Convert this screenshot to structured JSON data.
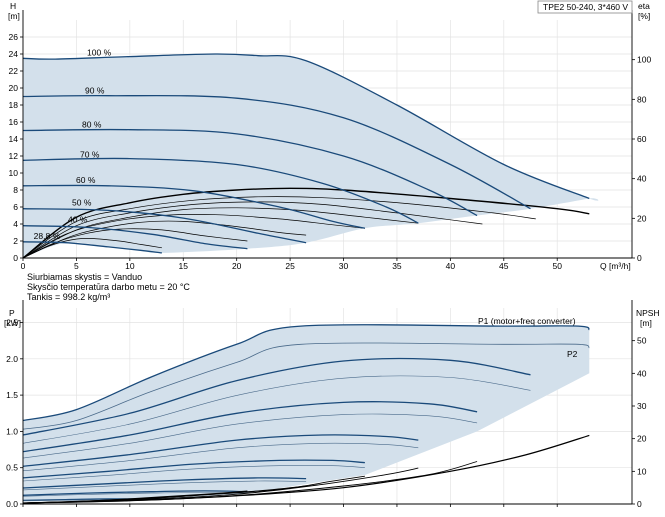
{
  "legend_box": "TPE2 50-240, 3*460 V",
  "notes": {
    "liquid": "Siurbiamas skystis = Vanduo",
    "temperature": "Skysčio temperatūra darbo metu = 20 °C",
    "density": "Tankis = 998.2 kg/m³"
  },
  "colors": {
    "envelope_fill": "#d3e0eb",
    "curve_dark": "#1a4a7a",
    "curve_light": "#4a6a8a",
    "efficiency": "#000000",
    "npsh": "#000000"
  },
  "chart_data": [
    {
      "type": "line",
      "name": "QH",
      "y_unit_label": "H",
      "y_unit": "[m]",
      "y2_unit_label": "eta",
      "y2_unit": "[%]",
      "x_unit_label": "Q [m³/h]",
      "xlim": [
        0,
        57
      ],
      "ylim": [
        0,
        28
      ],
      "x_ticks": [
        "0",
        "5",
        "10",
        "15",
        "20",
        "25",
        "30",
        "35",
        "40",
        "45",
        "50"
      ],
      "y_ticks": [
        "0",
        "2",
        "4",
        "6",
        "8",
        "10",
        "12",
        "14",
        "16",
        "18",
        "20",
        "22",
        "24",
        "26"
      ],
      "y2_ticks": [
        "0",
        "20",
        "40",
        "60",
        "80",
        "100"
      ],
      "speed_curves": [
        {
          "label": "100 %",
          "points": [
            [
              0,
              23.5
            ],
            [
              3,
              23.4
            ],
            [
              10,
              23.7
            ],
            [
              18,
              24.0
            ],
            [
              22,
              23.8
            ],
            [
              26.5,
              23.2
            ],
            [
              35,
              18.0
            ],
            [
              45,
              11.0
            ],
            [
              53,
              7.0
            ]
          ]
        },
        {
          "label": "90 %",
          "points": [
            [
              0,
              19.0
            ],
            [
              8,
              19.1
            ],
            [
              20,
              18.8
            ],
            [
              30,
              16.5
            ],
            [
              40,
              11.0
            ],
            [
              47.5,
              5.8
            ]
          ]
        },
        {
          "label": "80 %",
          "points": [
            [
              0,
              15.0
            ],
            [
              10,
              15.1
            ],
            [
              20,
              14.6
            ],
            [
              30,
              12.0
            ],
            [
              38,
              8.0
            ],
            [
              42.5,
              5.0
            ]
          ]
        },
        {
          "label": "70 %",
          "points": [
            [
              0,
              11.5
            ],
            [
              10,
              11.7
            ],
            [
              20,
              11.0
            ],
            [
              28,
              8.8
            ],
            [
              34,
              6.0
            ],
            [
              37,
              4.1
            ]
          ]
        },
        {
          "label": "60 %",
          "points": [
            [
              0,
              8.5
            ],
            [
              8,
              8.5
            ],
            [
              16,
              7.9
            ],
            [
              24,
              6.0
            ],
            [
              29,
              4.3
            ],
            [
              32,
              3.5
            ]
          ]
        },
        {
          "label": "50 %",
          "points": [
            [
              0,
              5.8
            ],
            [
              8,
              5.6
            ],
            [
              15,
              4.7
            ],
            [
              22,
              2.9
            ],
            [
              26.5,
              1.8
            ]
          ]
        },
        {
          "label": "40 %",
          "points": [
            [
              0,
              3.8
            ],
            [
              6,
              3.6
            ],
            [
              12,
              2.8
            ],
            [
              17,
              1.7
            ],
            [
              21,
              1.1
            ]
          ]
        },
        {
          "label": "28.8 %",
          "points": [
            [
              0,
              1.9
            ],
            [
              4,
              1.8
            ],
            [
              8,
              1.3
            ],
            [
              11,
              0.9
            ],
            [
              13,
              0.6
            ]
          ]
        }
      ],
      "efficiency_curves": [
        {
          "points": [
            [
              0,
              0
            ],
            [
              5,
              4.8
            ],
            [
              10,
              6.5
            ],
            [
              15,
              7.5
            ],
            [
              20,
              8.0
            ],
            [
              25,
              8.2
            ],
            [
              30,
              8.0
            ],
            [
              40,
              7.0
            ],
            [
              50,
              5.8
            ],
            [
              53,
              5.2
            ]
          ]
        },
        {
          "points": [
            [
              0,
              0
            ],
            [
              5,
              4.3
            ],
            [
              10,
              5.8
            ],
            [
              16,
              6.8
            ],
            [
              22,
              7.2
            ],
            [
              28,
              7.1
            ],
            [
              36,
              6.4
            ],
            [
              44,
              5.3
            ],
            [
              48,
              4.6
            ]
          ]
        },
        {
          "points": [
            [
              0,
              0
            ],
            [
              5,
              3.8
            ],
            [
              10,
              5.3
            ],
            [
              16,
              6.3
            ],
            [
              22,
              6.6
            ],
            [
              28,
              6.3
            ],
            [
              35,
              5.3
            ],
            [
              40,
              4.5
            ],
            [
              43,
              4.0
            ]
          ]
        },
        {
          "points": [
            [
              0,
              0
            ],
            [
              5,
              3.3
            ],
            [
              10,
              4.8
            ],
            [
              15,
              5.7
            ],
            [
              20,
              5.9
            ],
            [
              26,
              5.6
            ],
            [
              32,
              4.8
            ],
            [
              37,
              4.1
            ]
          ]
        },
        {
          "points": [
            [
              0,
              0
            ],
            [
              4,
              2.8
            ],
            [
              8,
              4.2
            ],
            [
              13,
              5.0
            ],
            [
              18,
              5.1
            ],
            [
              24,
              4.6
            ],
            [
              29,
              3.9
            ],
            [
              32,
              3.5
            ]
          ]
        },
        {
          "points": [
            [
              0,
              0
            ],
            [
              4,
              2.3
            ],
            [
              7,
              3.4
            ],
            [
              11,
              4.2
            ],
            [
              15,
              4.3
            ],
            [
              20,
              3.7
            ],
            [
              24,
              3.0
            ],
            [
              26.5,
              2.7
            ]
          ]
        },
        {
          "points": [
            [
              0,
              0
            ],
            [
              3,
              1.8
            ],
            [
              6,
              2.9
            ],
            [
              9,
              3.4
            ],
            [
              13,
              3.3
            ],
            [
              17,
              2.6
            ],
            [
              21,
              2.0
            ]
          ]
        },
        {
          "points": [
            [
              0,
              0
            ],
            [
              2,
              1.2
            ],
            [
              4,
              2.0
            ],
            [
              6,
              2.3
            ],
            [
              9,
              2.0
            ],
            [
              11,
              1.6
            ],
            [
              13,
              1.2
            ]
          ]
        }
      ]
    },
    {
      "type": "line",
      "name": "Power",
      "y_unit_label": "P",
      "y_unit": "[kW]",
      "y2_unit_label": "NPSH",
      "y2_unit": "[m]",
      "xlim": [
        0,
        57
      ],
      "ylim": [
        0,
        2.7
      ],
      "y_ticks": [
        "0.0",
        "0.5",
        "1.0",
        "1.5",
        "2.0",
        "2.5"
      ],
      "y2_ticks": [
        "0",
        "10",
        "20",
        "30",
        "40",
        "50"
      ],
      "series_labels": [
        "P1 (motor+freq converter)",
        "P2"
      ],
      "p1_envelope": [
        [
          0,
          1.15
        ],
        [
          5,
          1.3
        ],
        [
          12,
          1.75
        ],
        [
          20,
          2.2
        ],
        [
          26,
          2.45
        ],
        [
          45,
          2.45
        ],
        [
          52,
          2.45
        ],
        [
          53,
          2.4
        ]
      ],
      "p2_envelope": [
        [
          0,
          1.03
        ],
        [
          5,
          1.15
        ],
        [
          12,
          1.55
        ],
        [
          20,
          1.95
        ],
        [
          26,
          2.2
        ],
        [
          45,
          2.2
        ],
        [
          52,
          2.2
        ],
        [
          53,
          2.15
        ]
      ],
      "power_curves": [
        {
          "points": [
            [
              0,
              0.95
            ],
            [
              10,
              1.25
            ],
            [
              20,
              1.7
            ],
            [
              30,
              1.97
            ],
            [
              40,
              1.98
            ],
            [
              47.5,
              1.78
            ]
          ]
        },
        {
          "points": [
            [
              0,
              0.72
            ],
            [
              10,
              0.95
            ],
            [
              20,
              1.25
            ],
            [
              30,
              1.4
            ],
            [
              38,
              1.38
            ],
            [
              42.5,
              1.27
            ]
          ]
        },
        {
          "points": [
            [
              0,
              0.52
            ],
            [
              10,
              0.68
            ],
            [
              20,
              0.88
            ],
            [
              28,
              0.95
            ],
            [
              34,
              0.93
            ],
            [
              37,
              0.88
            ]
          ]
        },
        {
          "points": [
            [
              0,
              0.36
            ],
            [
              8,
              0.45
            ],
            [
              16,
              0.55
            ],
            [
              24,
              0.6
            ],
            [
              29,
              0.6
            ],
            [
              32,
              0.57
            ]
          ]
        },
        {
          "points": [
            [
              0,
              0.22
            ],
            [
              8,
              0.28
            ],
            [
              15,
              0.33
            ],
            [
              22,
              0.36
            ],
            [
              26.5,
              0.35
            ]
          ]
        },
        {
          "points": [
            [
              0,
              0.12
            ],
            [
              6,
              0.15
            ],
            [
              12,
              0.17
            ],
            [
              17,
              0.18
            ],
            [
              21,
              0.17
            ]
          ]
        },
        {
          "points": [
            [
              0,
              0.05
            ],
            [
              4,
              0.06
            ],
            [
              8,
              0.07
            ],
            [
              13,
              0.07
            ]
          ]
        }
      ],
      "npsh_curves": [
        {
          "points": [
            [
              0,
              0.3
            ],
            [
              10,
              1.0
            ],
            [
              20,
              2.5
            ],
            [
              30,
              5.0
            ],
            [
              40,
              10.0
            ],
            [
              47,
              15.0
            ],
            [
              53,
              21.0
            ]
          ]
        },
        {
          "points": [
            [
              0,
              0.3
            ],
            [
              10,
              1.0
            ],
            [
              20,
              2.6
            ],
            [
              30,
              5.5
            ],
            [
              38,
              9.0
            ],
            [
              42.5,
              13.0
            ]
          ]
        },
        {
          "points": [
            [
              0,
              0.3
            ],
            [
              10,
              1.2
            ],
            [
              20,
              3.0
            ],
            [
              28,
              6.0
            ],
            [
              34,
              9.0
            ],
            [
              37,
              11.0
            ]
          ]
        },
        {
          "points": [
            [
              0,
              0.3
            ],
            [
              8,
              1.0
            ],
            [
              16,
              2.6
            ],
            [
              24,
              4.5
            ],
            [
              29,
              7.0
            ],
            [
              32,
              8.5
            ]
          ]
        },
        {
          "points": [
            [
              0,
              0.3
            ],
            [
              8,
              1.1
            ],
            [
              15,
              2.4
            ],
            [
              22,
              4.0
            ],
            [
              26.5,
              5.5
            ]
          ]
        },
        {
          "points": [
            [
              0,
              0.3
            ],
            [
              6,
              0.9
            ],
            [
              12,
              2.0
            ],
            [
              17,
              3.0
            ],
            [
              21,
              4.0
            ]
          ]
        },
        {
          "points": [
            [
              0,
              0.3
            ],
            [
              4,
              0.7
            ],
            [
              8,
              1.2
            ],
            [
              13,
              2.0
            ]
          ]
        }
      ]
    }
  ]
}
